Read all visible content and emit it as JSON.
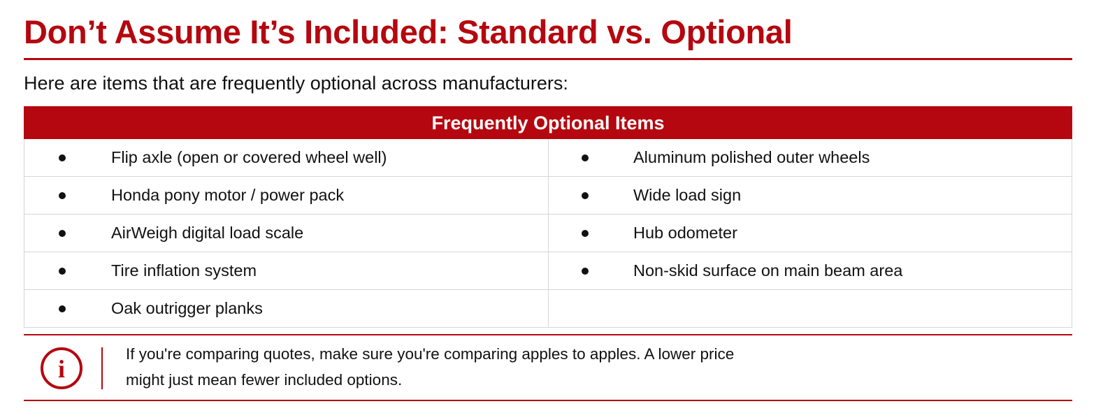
{
  "header": {
    "title": "Don’t Assume It’s Included: Standard vs. Optional"
  },
  "intro": "Here are items that are frequently optional across manufacturers:",
  "table": {
    "heading": "Frequently Optional Items",
    "rows": [
      [
        "Flip axle (open or covered wheel well)",
        "Aluminum polished outer wheels"
      ],
      [
        "Honda pony motor / power pack",
        "Wide load sign"
      ],
      [
        "AirWeigh digital load scale",
        "Hub odometer"
      ],
      [
        "Tire inflation system",
        "Non-skid surface on main beam area"
      ],
      [
        "Oak outrigger planks"
      ]
    ]
  },
  "callout": {
    "icon": "i",
    "lines": [
      "If you're comparing quotes, make sure you're comparing apples to apples. A lower price",
      "might just mean fewer included options."
    ]
  }
}
